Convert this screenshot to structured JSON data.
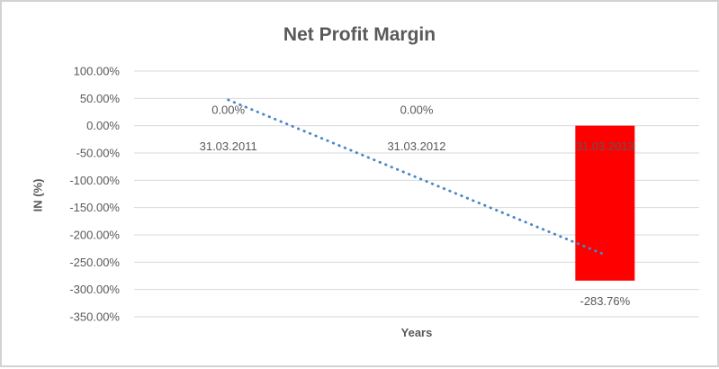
{
  "window": {
    "background": "#FFFFFF",
    "border_color": "#D2D2D2"
  },
  "chart_data": {
    "type": "bar",
    "title": "Net Profit Margin",
    "xlabel": "Years",
    "ylabel": "IN (%)",
    "categories": [
      "31.03.2011",
      "31.03.2012",
      "31.03.2013"
    ],
    "values": [
      0,
      0,
      -283.76
    ],
    "data_labels": [
      "0.00%",
      "0.00%",
      "-283.76%"
    ],
    "ylim": [
      -350,
      100
    ],
    "ytick_step": 50,
    "ytick_labels": [
      "100.00%",
      "50.00%",
      "0.00%",
      "-50.00%",
      "-100.00%",
      "-150.00%",
      "-200.00%",
      "-250.00%",
      "-300.00%",
      "-350.00%"
    ],
    "grid": true,
    "legend": false,
    "bar_color": "#FF0000",
    "gridline_color": "#D9D9D9",
    "text_color": "#595959",
    "trendline": {
      "type": "linear",
      "style": "dotted",
      "color": "#4A86C8",
      "fitted_values": [
        47.29,
        -94.59,
        -236.47
      ]
    }
  }
}
